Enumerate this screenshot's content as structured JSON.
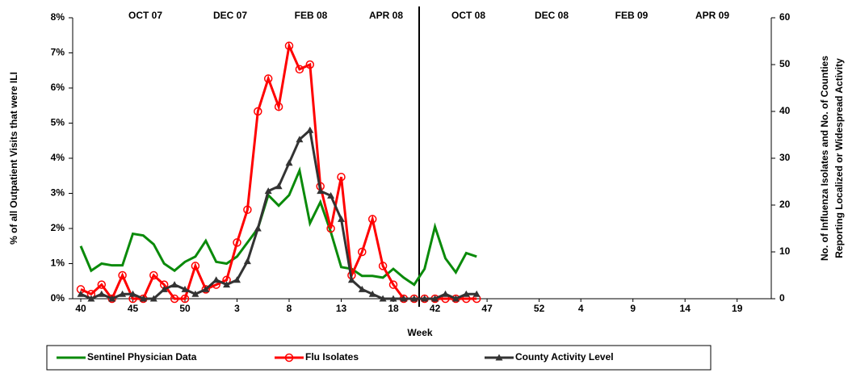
{
  "chart_data": {
    "type": "line",
    "annotations": [
      "OCT 07",
      "DEC 07",
      "FEB 08",
      "APR 08",
      "OCT 08",
      "DEC 08",
      "FEB 09",
      "APR 09"
    ],
    "xlabel": "Week",
    "ylabel": "% of all Outpatient Visits that were ILI",
    "y2label": [
      "No. of  Influenza  Isolates  and  No.  of  Counties",
      "Reporting Localized or Widespread Activity"
    ],
    "categories": [
      40,
      null,
      null,
      null,
      null,
      45,
      null,
      null,
      null,
      null,
      50,
      null,
      null,
      null,
      null,
      3,
      null,
      null,
      null,
      null,
      8,
      null,
      null,
      null,
      null,
      13,
      null,
      null,
      null,
      null,
      18,
      null,
      null,
      null,
      42,
      null,
      null,
      null,
      null,
      47,
      null,
      null,
      null,
      null,
      52,
      null,
      null,
      null,
      4,
      null,
      null,
      null,
      null,
      9,
      null,
      null,
      null,
      null,
      14,
      null,
      null,
      null,
      null,
      19,
      null,
      null
    ],
    "ylim": [
      0,
      8
    ],
    "yticks": [
      {
        "value": 0,
        "label": "0%"
      },
      {
        "value": 1,
        "label": "1%"
      },
      {
        "value": 2,
        "label": "2%"
      },
      {
        "value": 3,
        "label": "3%"
      },
      {
        "value": 4,
        "label": "4%"
      },
      {
        "value": 5,
        "label": "5%"
      },
      {
        "value": 6,
        "label": "6%"
      },
      {
        "value": 7,
        "label": "7%"
      },
      {
        "value": 8,
        "label": "8%"
      }
    ],
    "y2lim": [
      0,
      60
    ],
    "y2ticks": [
      0,
      10,
      20,
      30,
      40,
      50,
      60
    ],
    "series": [
      {
        "name": "Sentinel Physician Data",
        "color": "#0a8a0a",
        "marker": "none",
        "values": [
          1.5,
          0.8,
          1.0,
          0.95,
          0.95,
          1.85,
          1.8,
          1.55,
          1.0,
          0.8,
          1.05,
          1.2,
          1.65,
          1.05,
          1.0,
          1.2,
          1.6,
          2.0,
          2.95,
          2.65,
          2.95,
          3.65,
          2.15,
          2.75,
          1.9,
          0.9,
          0.85,
          0.65,
          0.65,
          0.6,
          0.85,
          0.6,
          0.4,
          0.85,
          2.05,
          1.15,
          0.75,
          1.3,
          1.2,
          null,
          null,
          null,
          null,
          null,
          null,
          null,
          null,
          null,
          null,
          null,
          null,
          null,
          null,
          null,
          null,
          null,
          null,
          null,
          null,
          null,
          null,
          null,
          null,
          null,
          null,
          null
        ]
      },
      {
        "name": "Flu Isolates",
        "color": "#ff0000",
        "marker": "circle",
        "axis": "y2",
        "values": [
          2,
          1,
          3,
          0,
          5,
          0,
          0,
          5,
          3,
          0,
          0,
          7,
          2,
          3,
          4,
          12,
          19,
          40,
          47,
          41,
          54,
          49,
          50,
          24,
          15,
          26,
          5,
          10,
          17,
          7,
          3,
          0,
          0,
          0,
          0,
          0,
          0,
          0,
          0,
          null,
          null,
          null,
          null,
          null,
          null,
          null,
          null,
          null,
          null,
          null,
          null,
          null,
          null,
          null,
          null,
          null,
          null,
          null,
          null,
          null,
          null,
          null,
          null,
          null,
          null,
          null
        ]
      },
      {
        "name": "County Activity Level",
        "color": "#333333",
        "marker": "triangle",
        "axis": "y2",
        "values": [
          1,
          0,
          1,
          0,
          1,
          1,
          0,
          0,
          2,
          3,
          2,
          1,
          2,
          4,
          3,
          4,
          8,
          15,
          23,
          24,
          29,
          34,
          36,
          23,
          22,
          17,
          4,
          2,
          1,
          0,
          0,
          0,
          0,
          0,
          0,
          1,
          0,
          1,
          1,
          null,
          null,
          null,
          null,
          null,
          null,
          null,
          null,
          null,
          null,
          null,
          null,
          null,
          null,
          null,
          null,
          null,
          null,
          null,
          null,
          null,
          null,
          null,
          null,
          null,
          null,
          null
        ]
      }
    ]
  }
}
